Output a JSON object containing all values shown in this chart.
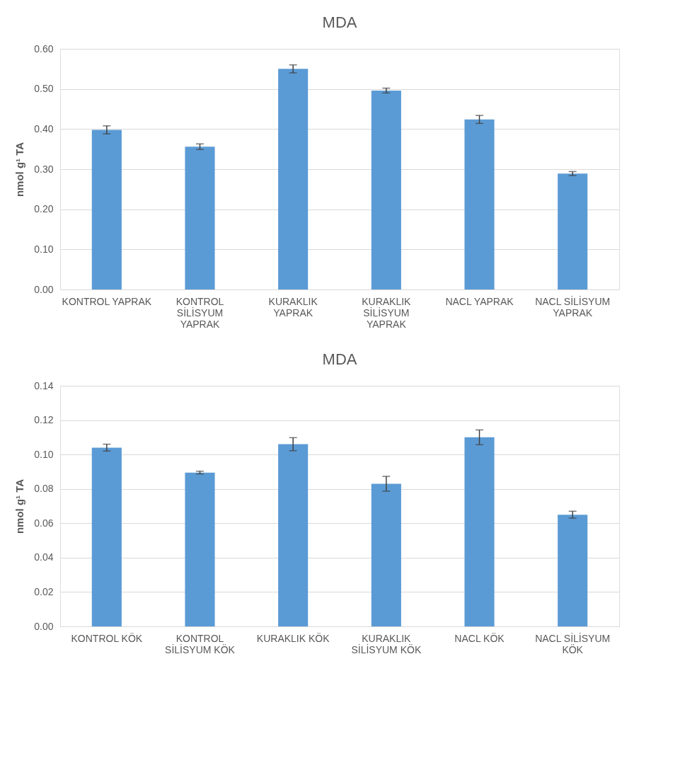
{
  "chart_data": [
    {
      "type": "bar",
      "title": "MDA",
      "ylabel": "nmol g¹ TA",
      "categories": [
        "KONTROL YAPRAK",
        "KONTROL SİLİSYUM YAPRAK",
        "KURAKLIK YAPRAK",
        "KURAKLIK SİLİSYUM YAPRAK",
        "NACL YAPRAK",
        "NACL SİLİSYUM YAPRAK"
      ],
      "series": [
        {
          "color": "#5b9bd5",
          "values": [
            0.398,
            0.356,
            0.55,
            0.496,
            0.424,
            0.289
          ],
          "errors": [
            0.01,
            0.007,
            0.01,
            0.006,
            0.01,
            0.005
          ]
        }
      ],
      "ylim": [
        0,
        0.6
      ],
      "yticks": [
        {
          "value": 0,
          "label": "0.00"
        },
        {
          "value": 0.1,
          "label": "0.10"
        },
        {
          "value": 0.2,
          "label": "0.20"
        },
        {
          "value": 0.3,
          "label": "0.30"
        },
        {
          "value": 0.4,
          "label": "0.40"
        },
        {
          "value": 0.5,
          "label": "0.50"
        },
        {
          "value": 0.6,
          "label": "0.60"
        }
      ],
      "grid": "y"
    },
    {
      "type": "bar",
      "title": "MDA",
      "ylabel": "nmol g¹ TA",
      "categories": [
        "KONTROL KÖK",
        "KONTROL SİLİSYUM KÖK",
        "KURAKLIK KÖK",
        "KURAKLIK SİLİSYUM KÖK",
        "NACL KÖK",
        "NACL SİLİSYUM KÖK"
      ],
      "series": [
        {
          "color": "#5b9bd5",
          "values": [
            0.104,
            0.0895,
            0.106,
            0.083,
            0.11,
            0.065
          ],
          "errors": [
            0.002,
            0.0008,
            0.0038,
            0.0043,
            0.0043,
            0.002
          ]
        }
      ],
      "ylim": [
        0,
        0.14
      ],
      "yticks": [
        {
          "value": 0,
          "label": "0.00"
        },
        {
          "value": 0.02,
          "label": "0.02"
        },
        {
          "value": 0.04,
          "label": "0.04"
        },
        {
          "value": 0.06,
          "label": "0.06"
        },
        {
          "value": 0.08,
          "label": "0.08"
        },
        {
          "value": 0.1,
          "label": "0.10"
        },
        {
          "value": 0.12,
          "label": "0.12"
        },
        {
          "value": 0.14,
          "label": "0.14"
        }
      ],
      "grid": "y"
    }
  ]
}
